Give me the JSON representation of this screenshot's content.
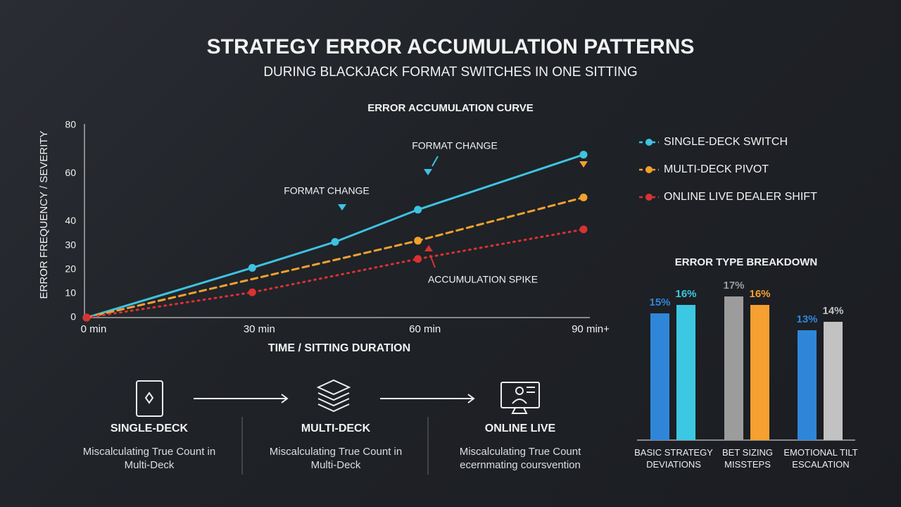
{
  "title": "STRATEGY ERROR ACCUMULATION PATTERNS",
  "subtitle": "DURING BLACKJACK FORMAT SWITCHES IN ONE SITTING",
  "chart_data": [
    {
      "type": "line",
      "title": "ERROR ACCUMULATION CURVE",
      "x_label": "TIME / SITTING DURATION",
      "y_label": "ERROR FREQUENCY / SEVERITY",
      "xlim": [
        0,
        90
      ],
      "xticks": [
        {
          "value": 0,
          "label": "0 min"
        },
        {
          "value": 30,
          "label": "30 min"
        },
        {
          "value": 60,
          "label": "60 min"
        },
        {
          "value": 90,
          "label": "90 min+"
        }
      ],
      "ylim": [
        0,
        80
      ],
      "yticks": [
        0,
        10,
        20,
        30,
        40,
        60,
        80
      ],
      "legend": "right",
      "series": [
        {
          "name": "SINGLE-DECK SWITCH",
          "color": "#3ec3e2",
          "style": "solid",
          "x": [
            0,
            30,
            45,
            60,
            90
          ],
          "values": [
            0,
            20.7,
            31.5,
            44.9,
            67.8
          ]
        },
        {
          "name": "MULTI-DECK PIVOT",
          "color": "#f2a12e",
          "style": "dashed",
          "x": [
            0,
            60,
            90
          ],
          "values": [
            0,
            32,
            50
          ]
        },
        {
          "name": "ONLINE LIVE DEALER SHIFT",
          "color": "#d83232",
          "style": "dotted",
          "x": [
            0,
            30,
            60,
            90
          ],
          "values": [
            0,
            10.5,
            24.4,
            36.7
          ]
        }
      ],
      "annotations": [
        {
          "text": "FORMAT CHANGE"
        },
        {
          "text": "FORMAT CHANGE"
        },
        {
          "text": "ACCUMULATION SPIKE"
        }
      ]
    },
    {
      "type": "bar",
      "title": "ERROR TYPE BREAKDOWN",
      "categories": [
        "BASIC STRATEGY DEVIATIONS",
        "BET SIZING MISSTEPS",
        "EMOTIONAL TILT ESCALATION"
      ],
      "ylim": [
        0,
        20
      ],
      "series": [
        {
          "values": [
            15,
            17,
            13
          ],
          "value_labels": [
            "15%",
            "17%",
            "13%"
          ],
          "colors": [
            "#2f86d9",
            "#9c9c9c",
            "#2f86d9"
          ]
        },
        {
          "values": [
            16,
            16,
            14
          ],
          "value_labels": [
            "16%",
            "16%",
            "14%"
          ],
          "colors": [
            "#3cc8e2",
            "#f5a031",
            "#c2c2c2"
          ]
        }
      ]
    }
  ],
  "flow": {
    "steps": [
      {
        "title": "SINGLE-DECK",
        "description": "Miscalculating True Count in Multi-Deck"
      },
      {
        "title": "MULTI-DECK",
        "description": "Miscalculating True Count in Multi-Deck"
      },
      {
        "title": "ONLINE LIVE",
        "description": "Miscalculating True Count ecernmating coursvention"
      }
    ]
  }
}
